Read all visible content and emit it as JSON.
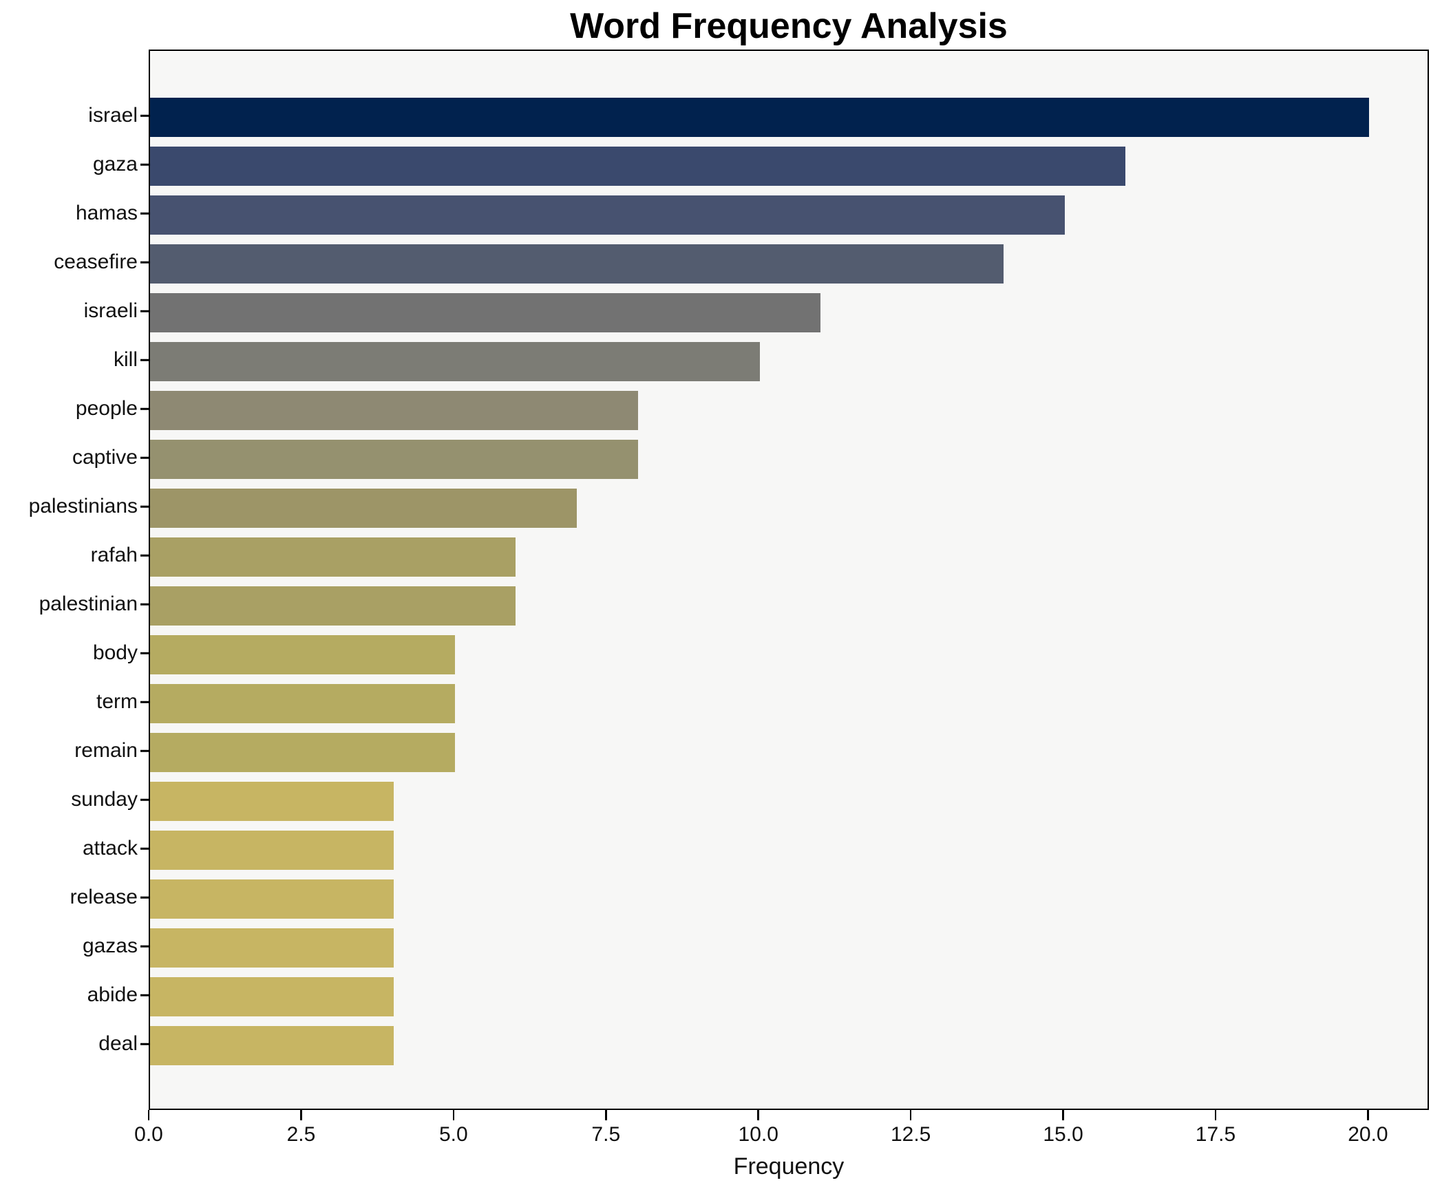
{
  "figure": {
    "title": "Word Frequency Analysis"
  },
  "chart_data": {
    "type": "bar",
    "orientation": "horizontal",
    "title": "Word Frequency Analysis",
    "xlabel": "Frequency",
    "ylabel": "",
    "categories": [
      "israel",
      "gaza",
      "hamas",
      "ceasefire",
      "israeli",
      "kill",
      "people",
      "captive",
      "palestinians",
      "rafah",
      "palestinian",
      "body",
      "term",
      "remain",
      "sunday",
      "attack",
      "release",
      "gazas",
      "abide",
      "deal"
    ],
    "values": [
      20,
      16,
      15,
      14,
      11,
      10,
      8,
      8,
      7,
      6,
      6,
      5,
      5,
      5,
      4,
      4,
      4,
      4,
      4,
      4
    ],
    "bar_colors": [
      "#01224e",
      "#3a496d",
      "#475270",
      "#535c6f",
      "#727272",
      "#7c7c75",
      "#8e8973",
      "#95916f",
      "#9d9567",
      "#a9a064",
      "#a9a064",
      "#b5ab61",
      "#b5ab61",
      "#b5ab61",
      "#c7b563",
      "#c7b563",
      "#c7b563",
      "#c7b563",
      "#c7b563",
      "#c7b563"
    ],
    "xlim": [
      0,
      21
    ],
    "xticks": [
      0,
      2.5,
      5,
      7.5,
      10,
      12.5,
      15,
      17.5,
      20
    ],
    "xtick_labels": [
      "0.0",
      "2.5",
      "5.0",
      "7.5",
      "10.0",
      "12.5",
      "15.0",
      "17.5",
      "20.0"
    ],
    "grid": false,
    "legend": "none",
    "plot_bg": "#f7f7f6",
    "text_color": "#111111",
    "spine_color": "#000000",
    "colormap_note": "cividis reversed by value (high=dark navy, low=khaki)"
  }
}
